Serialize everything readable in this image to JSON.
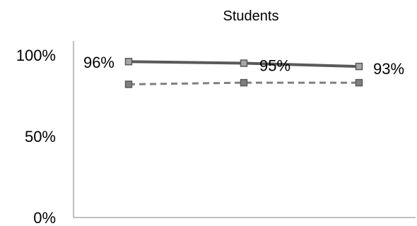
{
  "chart_data": {
    "type": "line",
    "title": "Students",
    "xlabel": "",
    "ylabel": "",
    "categories": [
      "",
      "",
      ""
    ],
    "ylim": [
      0,
      100
    ],
    "y_ticks": [
      {
        "value": 0,
        "label": "0%"
      },
      {
        "value": 50,
        "label": "50%"
      },
      {
        "value": 100,
        "label": "100%"
      }
    ],
    "grid": false,
    "legend": "none",
    "series": [
      {
        "values": [
          96,
          95,
          93
        ],
        "data_labels": [
          "96%",
          "95%",
          "93%"
        ],
        "color": "#595959",
        "style": "solid",
        "marker_fill": "#a6a6a6"
      },
      {
        "values": [
          82,
          83,
          83
        ],
        "data_labels": [],
        "color": "#808080",
        "style": "dashed",
        "marker_fill": "#7f7f7f"
      }
    ]
  }
}
